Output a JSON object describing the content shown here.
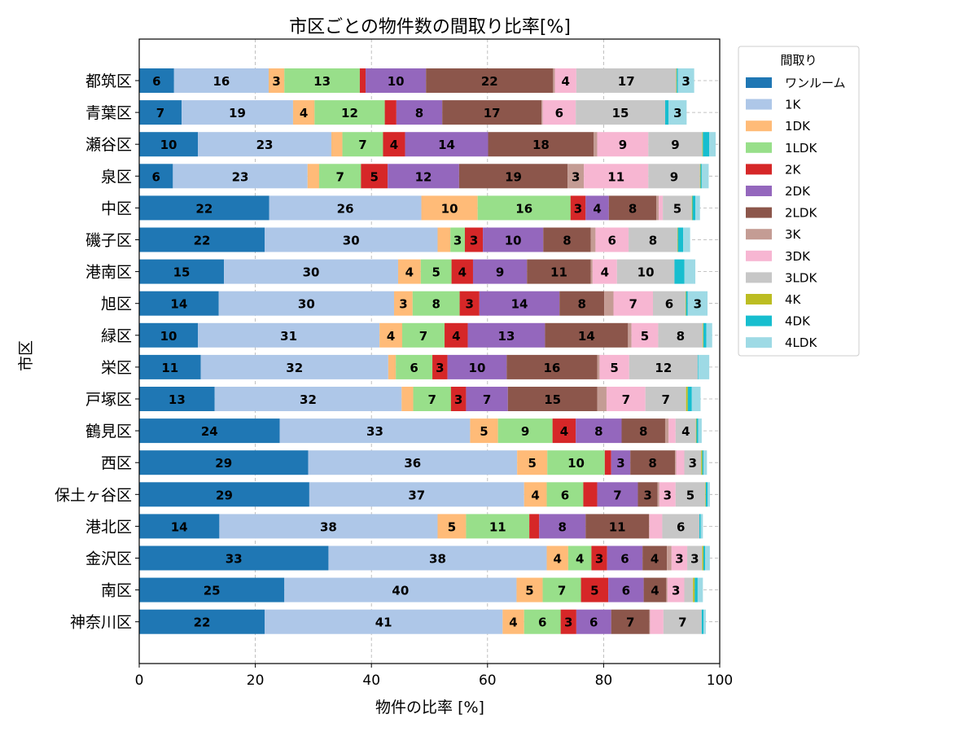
{
  "chart_data": {
    "type": "bar",
    "orientation": "horizontal",
    "stacked": true,
    "title": "市区ごとの物件数の間取り比率[%]",
    "xlabel": "物件の比率 [%]",
    "ylabel": "市区",
    "xlim": [
      0,
      100
    ],
    "xticks": [
      0,
      20,
      40,
      60,
      80,
      100
    ],
    "grid": true,
    "legend_title": "間取り",
    "legend_position": "outside right, top",
    "categories": [
      "都筑区",
      "青葉区",
      "瀬谷区",
      "泉区",
      "中区",
      "磯子区",
      "港南区",
      "旭区",
      "緑区",
      "栄区",
      "戸塚区",
      "鶴見区",
      "西区",
      "保土ヶ谷区",
      "港北区",
      "金沢区",
      "南区",
      "神奈川区"
    ],
    "series": [
      {
        "name": "ワンルーム",
        "color": "#1f77b4",
        "values": [
          6.0,
          7.3,
          10.1,
          5.8,
          22.4,
          21.6,
          14.6,
          13.7,
          10.1,
          10.6,
          13.0,
          24.2,
          29.1,
          29.3,
          13.8,
          32.6,
          25.0,
          21.6
        ]
      },
      {
        "name": "1K",
        "color": "#aec7e8",
        "values": [
          16.3,
          19.2,
          23.0,
          23.2,
          26.2,
          29.8,
          30.0,
          30.2,
          31.3,
          32.3,
          32.2,
          32.8,
          36.0,
          37.0,
          37.6,
          37.6,
          40.0,
          41.0
        ]
      },
      {
        "name": "1DK",
        "color": "#ffbb78",
        "values": [
          2.7,
          3.7,
          1.9,
          2.0,
          9.7,
          2.2,
          3.9,
          3.2,
          3.9,
          1.3,
          2.0,
          4.8,
          5.2,
          3.9,
          4.9,
          3.7,
          4.5,
          3.7
        ]
      },
      {
        "name": "1LDK",
        "color": "#98df8a",
        "values": [
          13.0,
          12.1,
          7.0,
          7.2,
          16.0,
          2.5,
          5.3,
          8.1,
          7.3,
          6.3,
          6.5,
          9.4,
          9.9,
          6.3,
          10.9,
          4.0,
          6.6,
          6.3
        ]
      },
      {
        "name": "2K",
        "color": "#d62728",
        "values": [
          1.0,
          2.0,
          3.8,
          4.6,
          2.6,
          3.1,
          3.7,
          3.4,
          4.0,
          2.6,
          2.6,
          4.0,
          1.1,
          2.4,
          1.7,
          2.7,
          4.7,
          2.7
        ]
      },
      {
        "name": "2DK",
        "color": "#9467bd",
        "values": [
          10.4,
          7.9,
          14.3,
          12.3,
          4.0,
          10.4,
          9.3,
          13.8,
          13.3,
          10.2,
          7.2,
          7.9,
          3.3,
          7.0,
          8.0,
          6.1,
          6.1,
          6.0
        ]
      },
      {
        "name": "2LDK",
        "color": "#8c564b",
        "values": [
          21.9,
          17.1,
          18.2,
          18.7,
          8.2,
          8.2,
          11.0,
          7.7,
          14.3,
          15.6,
          15.4,
          7.5,
          7.7,
          3.4,
          10.9,
          4.2,
          3.9,
          6.6
        ]
      },
      {
        "name": "3K",
        "color": "#c49c94",
        "values": [
          0.3,
          0.2,
          0.6,
          2.8,
          0.4,
          0.8,
          0.3,
          1.6,
          0.6,
          0.4,
          1.6,
          0.6,
          0.2,
          0.3,
          0.1,
          0.8,
          0.2,
          0.1
        ]
      },
      {
        "name": "3DK",
        "color": "#f7b6d2",
        "values": [
          3.7,
          5.7,
          8.8,
          11.1,
          0.7,
          5.7,
          4.2,
          6.8,
          4.6,
          5.1,
          6.7,
          1.2,
          1.4,
          2.8,
          2.2,
          2.7,
          2.9,
          2.3
        ]
      },
      {
        "name": "3LDK",
        "color": "#c7c7c7",
        "values": [
          17.2,
          15.4,
          9.3,
          8.9,
          5.0,
          8.4,
          9.9,
          5.6,
          7.7,
          11.8,
          7.0,
          3.5,
          2.9,
          5.1,
          6.4,
          2.6,
          1.5,
          6.6
        ]
      },
      {
        "name": "4K",
        "color": "#bcbd22",
        "values": [
          0.1,
          0.0,
          0.1,
          0.1,
          0.1,
          0.1,
          0.0,
          0.1,
          0.1,
          0.0,
          0.3,
          0.1,
          0.2,
          0.1,
          0.0,
          0.2,
          0.3,
          0.0
        ]
      },
      {
        "name": "4DK",
        "color": "#17becf",
        "values": [
          0.2,
          0.6,
          1.1,
          0.2,
          0.5,
          0.9,
          1.7,
          0.3,
          0.5,
          0.1,
          0.7,
          0.3,
          0.2,
          0.3,
          0.2,
          0.3,
          0.5,
          0.3
        ]
      },
      {
        "name": "4LDK",
        "color": "#9edae5",
        "values": [
          2.8,
          3.1,
          1.1,
          1.2,
          0.8,
          1.2,
          1.9,
          3.4,
          1.0,
          1.9,
          1.5,
          0.6,
          0.6,
          0.4,
          0.4,
          0.8,
          0.9,
          0.4
        ]
      }
    ]
  }
}
